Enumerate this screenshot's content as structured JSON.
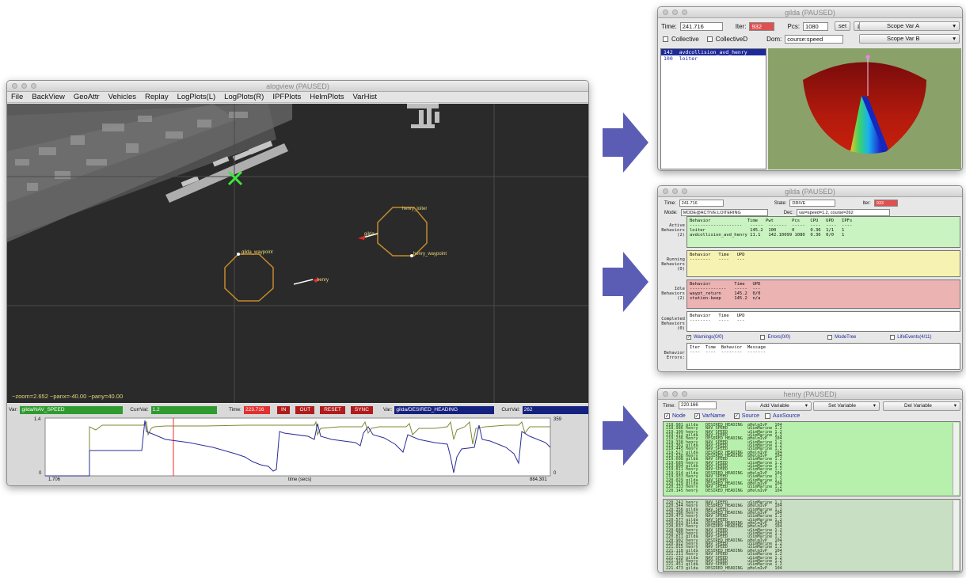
{
  "alogview": {
    "title": "alogview (PAUSED)",
    "menu": [
      "File",
      "BackView",
      "GeoAttr",
      "Vehicles",
      "Replay",
      "LogPlots(L)",
      "LogPlots(R)",
      "IPFPlots",
      "HelmPlots",
      "VarHist"
    ],
    "map": {
      "labels": {
        "henry_loiter": "henry_loiter",
        "henry_waypoint": "henry_waypoint",
        "gilda_waypoint": "gilda_waypoint",
        "henry": "henry",
        "gilda": "gilda"
      },
      "status": "~zoom=2.652  ~panx=-40.00 ~pany=40.00"
    },
    "controls": {
      "var_label": "Var:",
      "left_var": "gilda/NAV_SPEED",
      "curval_label": "CurrVal:",
      "left_curval": "1.2",
      "time_label": "Time:",
      "time_value": "223.716",
      "buttons": [
        "IN",
        "OUT",
        "RESET",
        "SYNC"
      ],
      "right_var_label": "Var:",
      "right_var": "gilda/DESIRED_HEADING",
      "right_curval_label": "CurrVal:",
      "right_curval": "262"
    },
    "plot": {
      "y_left_max": "1.4",
      "y_left_min": "0",
      "y_right_max": "359",
      "y_right_min": "0",
      "x_min": "1.706",
      "x_max": "884.301",
      "x_label": "time (secs)"
    }
  },
  "ipf": {
    "title": "gilda (PAUSED)",
    "time_label": "Time:",
    "time_value": "241.716",
    "iter_label": "Iter:",
    "iter_value": "932",
    "pcs_label": "Pcs:",
    "pcs_value": "1080",
    "set_label": "set",
    "pin_label": "pin",
    "scope_a": "Scope Var A",
    "scope_b": "Scope Var B",
    "collective": "Collective",
    "collectiveD": "CollectiveD",
    "dom_label": "Dom:",
    "dom_value": "course:speed",
    "behaviors": [
      "142  avdcollision_avd_henry",
      "100  loiter"
    ]
  },
  "helm": {
    "title": "gilda (PAUSED)",
    "time_label": "Time:",
    "time_value": "241.716",
    "state_label": "State:",
    "state_value": "DRIVE",
    "iter_label": "Iter:",
    "iter_value": "933",
    "mode_label": "Mode:",
    "mode_value": "MODE@ACTIVE:LOITERING",
    "dec_label": "Dec:",
    "dec_value": "var=speed=1.2, course=262",
    "sections": [
      {
        "label": "Active\nBehaviors\n(2)",
        "color": "#c9f3c0",
        "text": "Behavior              Time   Pwt       Pcs    CPU   UPD   IPFs\n--------------------   -----  -------  -----  ----  ----  ----\nloiter                 145.2  100      0      0.36  1/1   1\navdcollision_avd_henry 11.1   142.10099 1080  0.36  0/0   1"
      },
      {
        "label": "Running\nBehaviors\n(0)",
        "color": "#f6f3b2",
        "text": "Behavior   Time   UPD\n--------   ----   ---"
      },
      {
        "label": "Idle\nBehaviors\n(2)",
        "color": "#ecb3b3",
        "text": "Behavior         Time   UPD\n--------------   -----  ---\nwaypt_return     145.2  0/0\nstation-keep     145.2  n/a"
      },
      {
        "label": "Completed\nBehaviors\n(0)",
        "color": "#ffffff",
        "text": "Behavior   Time   UPD\n--------   ----   ---"
      }
    ],
    "checks": [
      "Warnings(0/0)",
      "Errors(0/0)",
      "ModeTree",
      "LifeEvents(4/11)"
    ],
    "errors_label": "Behavior\nErrors:",
    "errors_text": "Iter  Time  Behavior  Message\n----  ----  --------  -------"
  },
  "scope": {
    "title": "henry (PAUSED)",
    "time_label": "Time:",
    "time_value": "220.166",
    "add_var": "Add Variable",
    "set_var": "Set Variable",
    "del_var": "Del Variable",
    "checks": [
      "Node",
      "VarName",
      "Source",
      "AuxSource"
    ],
    "rows_top": [
      "218.981 gilda   DESIRED_HEADING  pHelmIvP   104",
      "218.986 henry   NAV_SPEED        uSimMarine 1.2",
      "219.109 henry   NAV_SPEED        uSimMarine 1.2",
      "219.212 gilda   NAV_SPEED        uSimMarine 1.2",
      "219.236 henry   DESIRED_HEADING  pHelmIvP   104",
      "219.338 henry   NAV_SPEED        uSimMarine 1.2",
      "219.361 gilda   NAV_SPEED        uSimMarine 1.2",
      "219.445 henry   NAV_SPEED        uSimMarine 1.2",
      "219.527 gilda   DESIRED_HEADING  pHelmIvP   104",
      "219.538 henry   DESIRED_HEADING  pHelmIvP   104",
      "219.608 gilda   NAV_SPEED        uSimMarine 1.2",
      "219.689 henry   NAV_SPEED        uSimMarine 1.2",
      "219.804 gilda   NAV_SPEED        uSimMarine 1.2",
      "219.811 henry   NAV_SPEED        uSimMarine 1.2",
      "219.914 gilda   DESIRED_HEADING  pHelmIvP   104",
      "219.933 henry   NAV_SPEED        uSimMarine 1.2",
      "220.029 gilda   NAV_SPEED        uSimMarine 1.2",
      "220.129 gilda   DESIRED_HEADING  pHelmIvP   104",
      "220.133 henry   NAV_SPEED        uSimMarine 1.2",
      "220.145 henry   DESIRED_HEADING  pHelmIvP   104"
    ],
    "rows_bottom": [
      "220.242 henry   NAV_SPEED        uSimMarine 1.2",
      "220.344 henry   DESIRED_HEADING  pHelmIvP   104",
      "220.356 gilda   NAV_SPEED        uSimMarine 1.2",
      "220.386 henry   DESIRED_HEADING  pHelmIvP   104",
      "220.473 henry   NAV_SPEED        uSimMarine 1.2",
      "220.577 gilda   NAV_SPEED        uSimMarine 1.2",
      "220.633 gilda   DESIRED_HEADING  pHelmIvP   104",
      "220.637 henry   DESIRED_HEADING  pHelmIvP   104",
      "220.688 henry   NAV_SPEED        uSimMarine 1.2",
      "220.789 henry   NAV_SPEED        uSimMarine 1.2",
      "220.811 gilda   NAV_SPEED        uSimMarine 1.2",
      "220.902 henry   DESIRED_HEADING  pHelmIvP   104",
      "220.922 henry   NAV_SPEED        uSimMarine 1.2",
      "221.015 henry   NAV_SPEED        uSimMarine 1.2",
      "221.118 gilda   DESIRED_HEADING  pHelmIvP   104",
      "221.211 henry   NAV_SPEED        uSimMarine 1.2",
      "221.233 gilda   NAV_SPEED        uSimMarine 1.2",
      "221.335 henry   NAV_SPEED        uSimMarine 1.2",
      "221.451 gilda   NAV_SPEED        uSimMarine 1.2",
      "221.473 gilda   DESIRED_HEADING  pHelmIvP   104"
    ]
  }
}
